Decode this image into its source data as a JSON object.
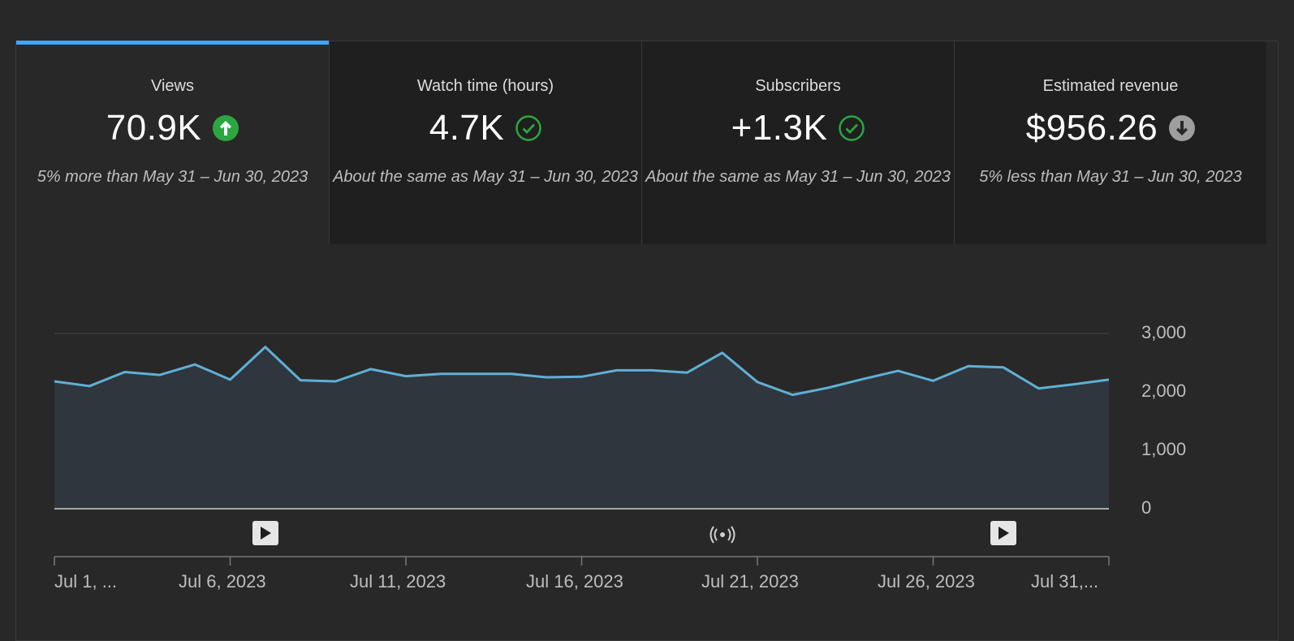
{
  "metrics": [
    {
      "label": "Views",
      "value": "70.9K",
      "trend": "up",
      "compare": "5% more than May 31 – Jun 30, 2023",
      "selected": true
    },
    {
      "label": "Watch time (hours)",
      "value": "4.7K",
      "trend": "same",
      "compare": "About the same as May 31 – Jun 30, 2023",
      "selected": false
    },
    {
      "label": "Subscribers",
      "value": "+1.3K",
      "trend": "same",
      "compare": "About the same as May 31 – Jun 30, 2023",
      "selected": false
    },
    {
      "label": "Estimated revenue",
      "value": "$956.26",
      "trend": "down",
      "compare": "5% less than May 31 – Jun 30, 2023",
      "selected": false
    }
  ],
  "colors": {
    "accent": "#3ea6ff",
    "line": "#5fb0d6",
    "area": "#30363d",
    "up": "#2ba640",
    "same": "#2ba640",
    "down": "#9e9e9e"
  },
  "chart_data": {
    "type": "area",
    "x": [
      "Jul 1, 2023",
      "Jul 2, 2023",
      "Jul 3, 2023",
      "Jul 4, 2023",
      "Jul 5, 2023",
      "Jul 6, 2023",
      "Jul 7, 2023",
      "Jul 8, 2023",
      "Jul 9, 2023",
      "Jul 10, 2023",
      "Jul 11, 2023",
      "Jul 12, 2023",
      "Jul 13, 2023",
      "Jul 14, 2023",
      "Jul 15, 2023",
      "Jul 16, 2023",
      "Jul 17, 2023",
      "Jul 18, 2023",
      "Jul 19, 2023",
      "Jul 20, 2023",
      "Jul 21, 2023",
      "Jul 22, 2023",
      "Jul 23, 2023",
      "Jul 24, 2023",
      "Jul 25, 2023",
      "Jul 26, 2023",
      "Jul 27, 2023",
      "Jul 28, 2023",
      "Jul 29, 2023",
      "Jul 30, 2023",
      "Jul 31, 2023"
    ],
    "series": [
      {
        "values": [
          2180,
          2100,
          2340,
          2290,
          2470,
          2210,
          2770,
          2200,
          2180,
          2390,
          2270,
          2310,
          2310,
          2310,
          2250,
          2260,
          2370,
          2370,
          2330,
          2670,
          2170,
          1950,
          2070,
          2220,
          2360,
          2190,
          2440,
          2420,
          2060,
          2130,
          2210
        ]
      }
    ],
    "ylim": [
      0,
      3000
    ],
    "yticks": [
      "3,000",
      "2,000",
      "1,000",
      "0"
    ],
    "xticks": [
      "Jul 1, ...",
      "Jul 6, 2023",
      "Jul 11, 2023",
      "Jul 16, 2023",
      "Jul 21, 2023",
      "Jul 26, 2023",
      "Jul 31,..."
    ],
    "markers": [
      {
        "type": "video",
        "date": "Jul 7, 2023"
      },
      {
        "type": "live",
        "date": "Jul 20, 2023"
      },
      {
        "type": "video",
        "date": "Jul 28, 2023"
      }
    ]
  }
}
